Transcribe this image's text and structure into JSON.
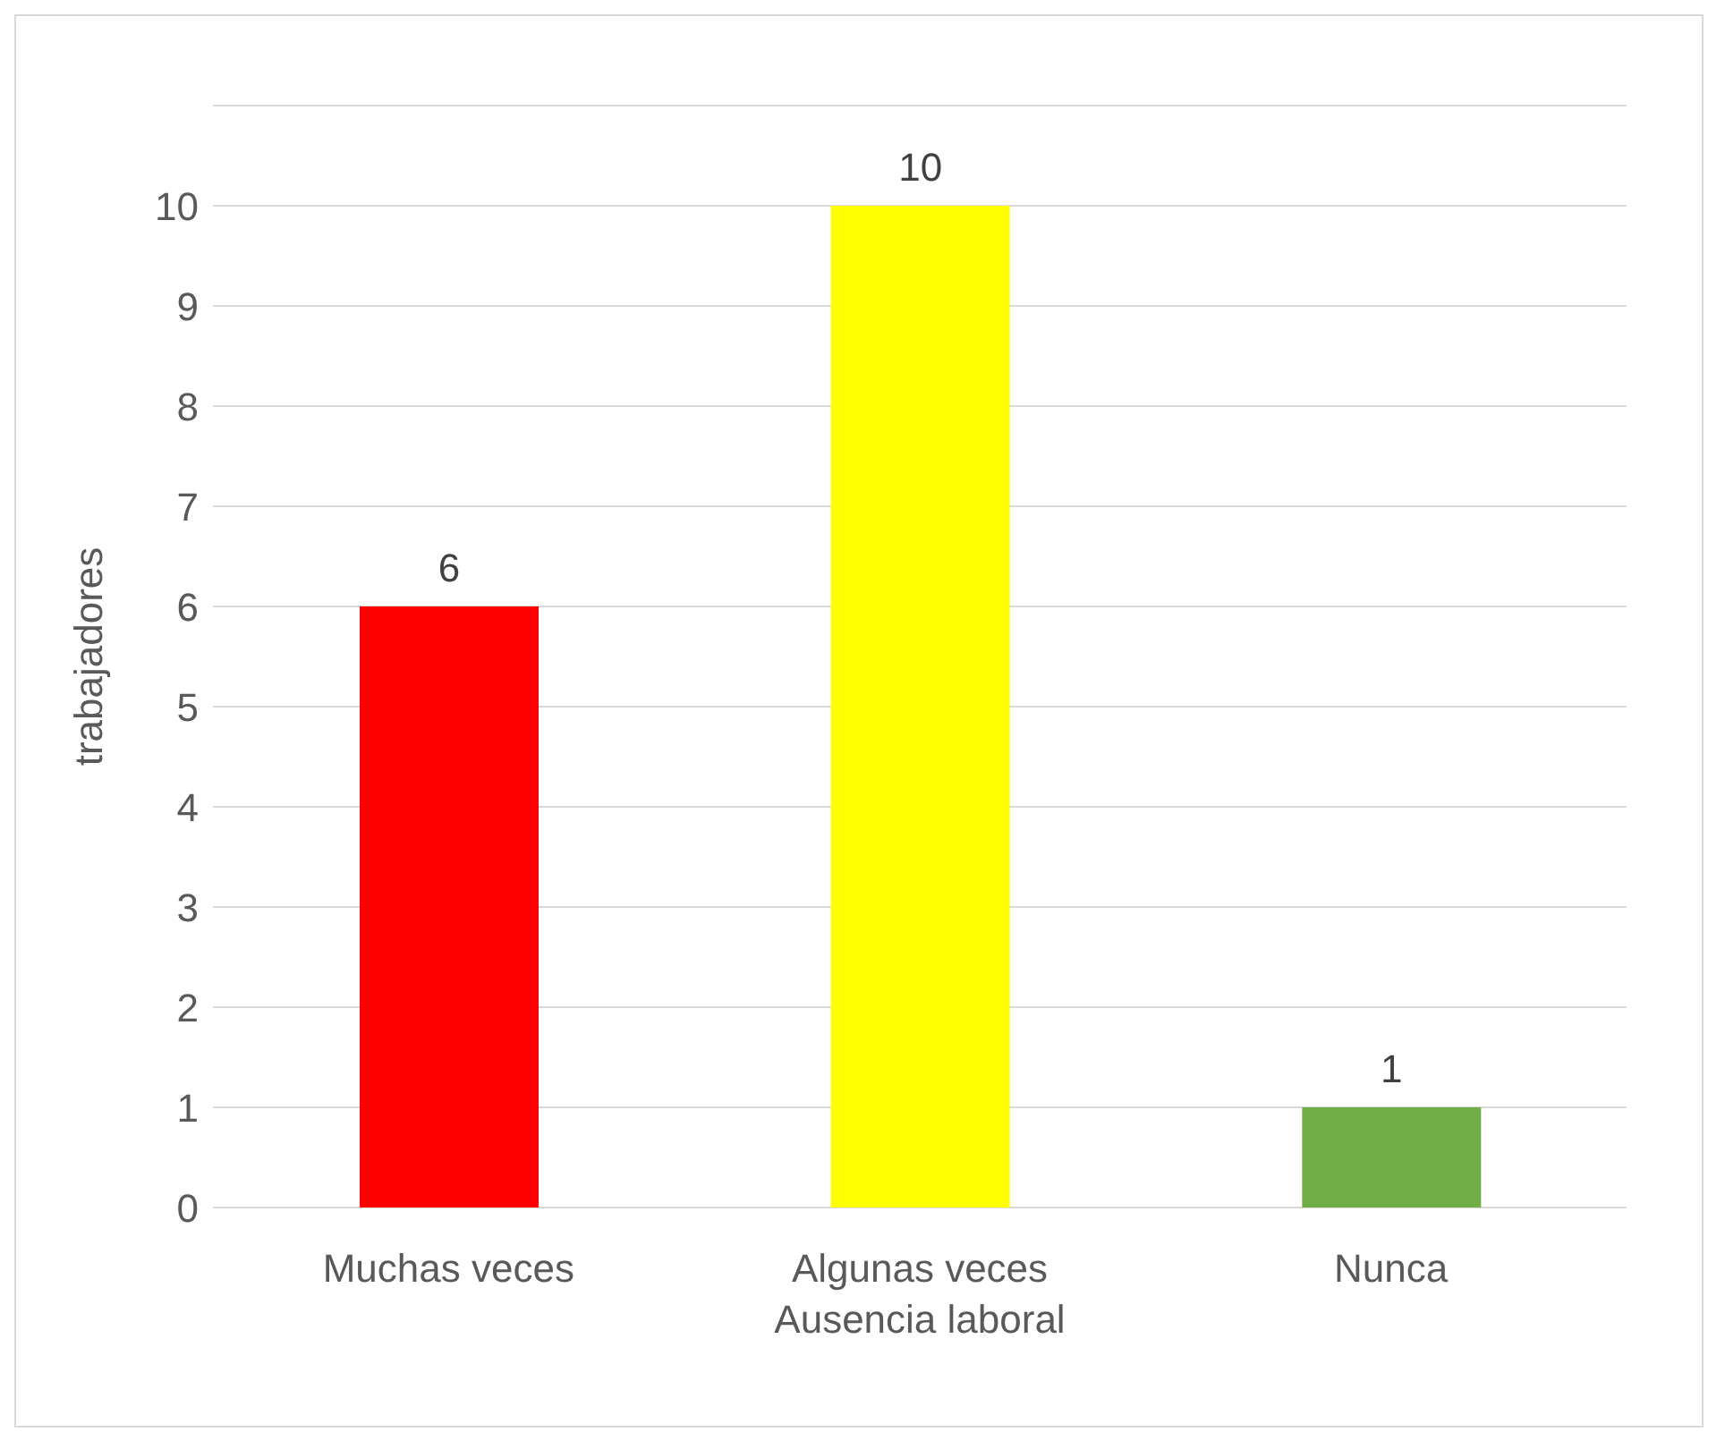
{
  "chart_data": {
    "type": "bar",
    "xlabel": "Ausencia laboral",
    "ylabel": "trabajadores",
    "categories": [
      "Muchas veces",
      "Algunas veces",
      "Nunca"
    ],
    "values": [
      6,
      10,
      1
    ],
    "colors": [
      "#ff0000",
      "#ffff00",
      "#70ad47"
    ],
    "ylim": [
      0,
      11
    ],
    "yticks": [
      0,
      1,
      2,
      3,
      4,
      5,
      6,
      7,
      8,
      9,
      10,
      {
        "value": 11,
        "label": null
      }
    ],
    "grid": "y",
    "data_labels": true
  }
}
